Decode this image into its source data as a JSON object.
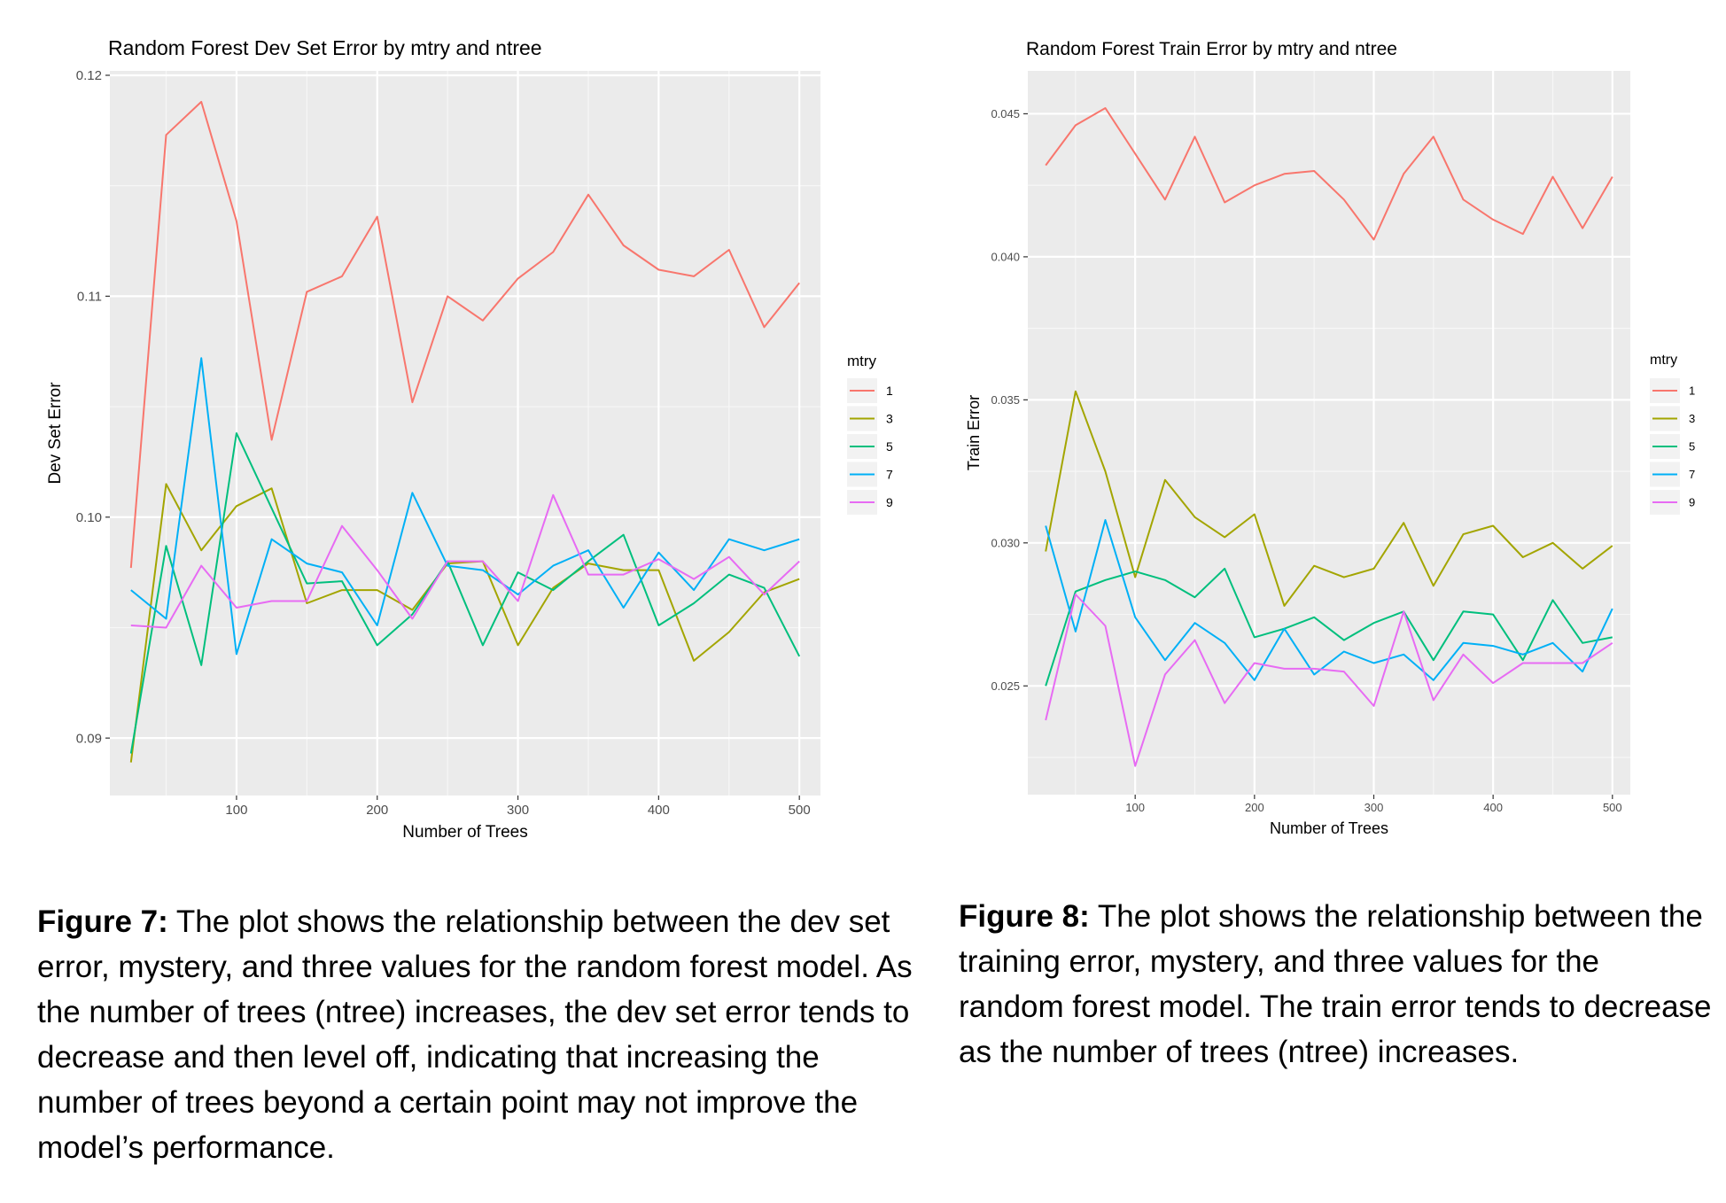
{
  "charts": [
    {
      "title": "Random Forest Dev Set Error by mtry and ntree",
      "xlabel": "Number of Trees",
      "ylabel": "Dev Set Error",
      "legend_title": "mtry",
      "xticks": [
        100,
        200,
        300,
        400,
        500
      ],
      "yticks": [
        "0.09",
        "0.10",
        "0.11",
        "0.12"
      ]
    },
    {
      "title": "Random Forest Train Error by mtry and ntree",
      "xlabel": "Number of Trees",
      "ylabel": "Train Error",
      "legend_title": "mtry",
      "xticks": [
        100,
        200,
        300,
        400,
        500
      ],
      "yticks": [
        "0.025",
        "0.030",
        "0.035",
        "0.040",
        "0.045"
      ]
    }
  ],
  "chart_data": [
    {
      "type": "line",
      "title": "Random Forest Dev Set Error by mtry and ntree",
      "xlabel": "Number of Trees",
      "ylabel": "Dev Set Error",
      "xlim": [
        10,
        515
      ],
      "ylim": [
        0.0874,
        0.1202
      ],
      "grid": true,
      "legend_placement": "right",
      "x": [
        25,
        50,
        75,
        100,
        125,
        150,
        175,
        200,
        225,
        250,
        275,
        300,
        325,
        350,
        375,
        400,
        425,
        450,
        475,
        500
      ],
      "series": [
        {
          "name": "1",
          "color": "#F8766D",
          "values": [
            0.0977,
            0.1173,
            0.1188,
            0.1134,
            0.1035,
            0.1102,
            0.1109,
            0.1136,
            0.1052,
            0.11,
            0.1089,
            0.1108,
            0.112,
            0.1146,
            0.1123,
            0.1112,
            0.1109,
            0.1121,
            0.1086,
            0.1106
          ]
        },
        {
          "name": "3",
          "color": "#A3A500",
          "values": [
            0.0889,
            0.1015,
            0.0985,
            0.1005,
            0.1013,
            0.0961,
            0.0967,
            0.0967,
            0.0958,
            0.0979,
            0.098,
            0.0942,
            0.0968,
            0.0979,
            0.0976,
            0.0976,
            0.0935,
            0.0948,
            0.0966,
            0.0972
          ]
        },
        {
          "name": "5",
          "color": "#00BF7D",
          "values": [
            0.0893,
            0.0987,
            0.0933,
            0.1038,
            0.1004,
            0.097,
            0.0971,
            0.0942,
            0.0956,
            0.098,
            0.0942,
            0.0975,
            0.0967,
            0.098,
            0.0992,
            0.0951,
            0.0961,
            0.0974,
            0.0968,
            0.0937
          ]
        },
        {
          "name": "7",
          "color": "#00B0F6",
          "values": [
            0.0967,
            0.0954,
            0.1072,
            0.0938,
            0.099,
            0.0979,
            0.0975,
            0.0951,
            0.1011,
            0.0978,
            0.0976,
            0.0965,
            0.0978,
            0.0985,
            0.0959,
            0.0984,
            0.0967,
            0.099,
            0.0985,
            0.099
          ]
        },
        {
          "name": "9",
          "color": "#E76BF3",
          "values": [
            0.0951,
            0.095,
            0.0978,
            0.0959,
            0.0962,
            0.0962,
            0.0996,
            0.0976,
            0.0954,
            0.098,
            0.098,
            0.0962,
            0.101,
            0.0974,
            0.0974,
            0.0981,
            0.0972,
            0.0982,
            0.0965,
            0.098
          ]
        }
      ]
    },
    {
      "type": "line",
      "title": "Random Forest Train Error by mtry and ntree",
      "xlabel": "Number of Trees",
      "ylabel": "Train Error",
      "xlim": [
        10,
        515
      ],
      "ylim": [
        0.0212,
        0.0465
      ],
      "grid": true,
      "legend_placement": "right",
      "x": [
        25,
        50,
        75,
        100,
        125,
        150,
        175,
        200,
        225,
        250,
        275,
        300,
        325,
        350,
        375,
        400,
        425,
        450,
        475,
        500
      ],
      "series": [
        {
          "name": "1",
          "color": "#F8766D",
          "values": [
            0.0432,
            0.0446,
            0.0452,
            0.0436,
            0.042,
            0.0442,
            0.0419,
            0.0425,
            0.0429,
            0.043,
            0.042,
            0.0406,
            0.0429,
            0.0442,
            0.042,
            0.0413,
            0.0408,
            0.0428,
            0.041,
            0.0428
          ]
        },
        {
          "name": "3",
          "color": "#A3A500",
          "values": [
            0.0297,
            0.0353,
            0.0325,
            0.0288,
            0.0322,
            0.0309,
            0.0302,
            0.031,
            0.0278,
            0.0292,
            0.0288,
            0.0291,
            0.0307,
            0.0285,
            0.0303,
            0.0306,
            0.0295,
            0.03,
            0.0291,
            0.0299
          ]
        },
        {
          "name": "5",
          "color": "#00BF7D",
          "values": [
            0.025,
            0.0283,
            0.0287,
            0.029,
            0.0287,
            0.0281,
            0.0291,
            0.0267,
            0.027,
            0.0274,
            0.0266,
            0.0272,
            0.0276,
            0.0259,
            0.0276,
            0.0275,
            0.0259,
            0.028,
            0.0265,
            0.0267
          ]
        },
        {
          "name": "7",
          "color": "#00B0F6",
          "values": [
            0.0306,
            0.0269,
            0.0308,
            0.0274,
            0.0259,
            0.0272,
            0.0265,
            0.0252,
            0.027,
            0.0254,
            0.0262,
            0.0258,
            0.0261,
            0.0252,
            0.0265,
            0.0264,
            0.0261,
            0.0265,
            0.0255,
            0.0277
          ]
        },
        {
          "name": "9",
          "color": "#E76BF3",
          "values": [
            0.0238,
            0.0282,
            0.0271,
            0.0222,
            0.0254,
            0.0266,
            0.0244,
            0.0258,
            0.0256,
            0.0256,
            0.0255,
            0.0243,
            0.0276,
            0.0245,
            0.0261,
            0.0251,
            0.0258,
            0.0258,
            0.0258,
            0.0265
          ]
        }
      ]
    }
  ],
  "captions": [
    {
      "label": "Figure 7:",
      "text": " The plot shows the relationship between the dev set error, mystery, and three values for the random forest model. As the number of trees (ntree) increases, the dev set error tends to decrease and then level off, indicating that increasing the number of trees beyond a certain point may not improve the model’s performance."
    },
    {
      "label": "Figure 8:",
      "text": " The plot shows the relationship between the training error, mystery, and three values for the random forest model. The train error tends to decrease as the number of trees (ntree) increases."
    }
  ]
}
